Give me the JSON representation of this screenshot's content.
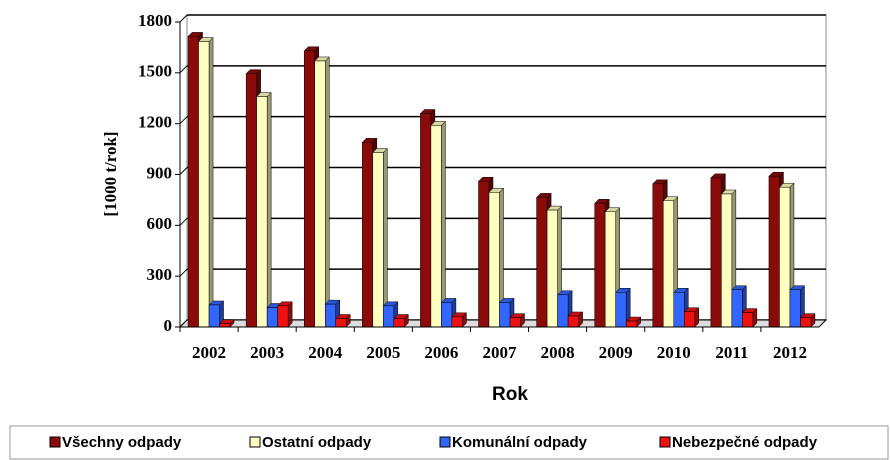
{
  "chart_data": {
    "type": "bar3d",
    "y_label": "[1000 t/rok]",
    "x_label": "Rok",
    "categories": [
      "2002",
      "2003",
      "2004",
      "2005",
      "2006",
      "2007",
      "2008",
      "2009",
      "2010",
      "2011",
      "2012"
    ],
    "series": [
      {
        "name": "Všechny odpady",
        "color": "#8b0a0a",
        "values": [
          1715,
          1495,
          1630,
          1090,
          1260,
          860,
          765,
          730,
          845,
          880,
          890
        ]
      },
      {
        "name": "Ostatní odpady",
        "color": "#ffffc0",
        "values": [
          1685,
          1360,
          1570,
          1030,
          1190,
          795,
          690,
          680,
          745,
          785,
          825
        ]
      },
      {
        "name": "Komunální odpady",
        "color": "#3366ff",
        "values": [
          130,
          115,
          135,
          125,
          145,
          145,
          190,
          205,
          205,
          220,
          220
        ]
      },
      {
        "name": "Nebezpečné odpady",
        "color": "#ee1111",
        "values": [
          20,
          125,
          50,
          50,
          60,
          55,
          65,
          35,
          90,
          85,
          55
        ]
      }
    ],
    "ylim": [
      0,
      1800
    ],
    "yticks": [
      0,
      300,
      600,
      900,
      1200,
      1500,
      1800
    ],
    "grid": true
  }
}
